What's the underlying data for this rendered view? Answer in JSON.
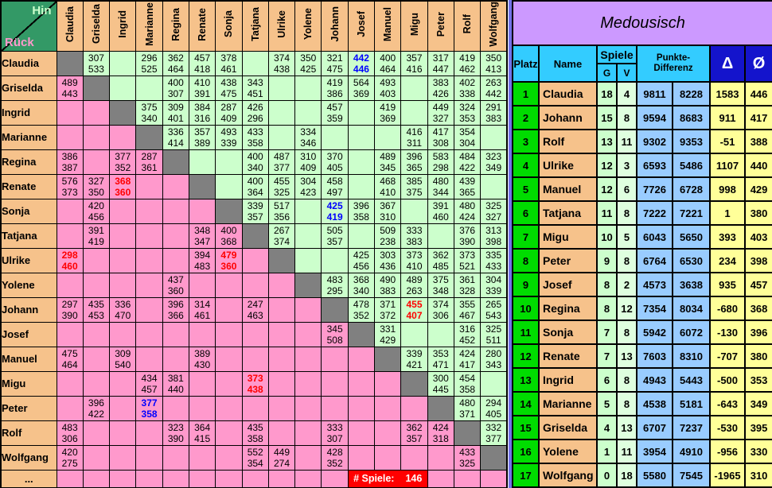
{
  "matrix": {
    "corner": {
      "hin": "Hin",
      "rueck": "Rück"
    },
    "players": [
      "Claudia",
      "Griselda",
      "Ingrid",
      "Marianne",
      "Regina",
      "Renate",
      "Sonja",
      "Tatjana",
      "Ulrike",
      "Yolene",
      "Johann",
      "Josef",
      "Manuel",
      "Migu",
      "Peter",
      "Rolf",
      "Wolfgang"
    ],
    "rows": [
      {
        "name": "Claudia",
        "cells": [
          null,
          [
            "307",
            "533"
          ],
          null,
          [
            "296",
            "525"
          ],
          [
            "362",
            "464"
          ],
          [
            "457",
            "418"
          ],
          [
            "378",
            "461"
          ],
          null,
          [
            "374",
            "438"
          ],
          [
            "350",
            "425"
          ],
          [
            "321",
            "475"
          ],
          [
            "442",
            "446",
            "blue"
          ],
          [
            "400",
            "464"
          ],
          [
            "357",
            "416"
          ],
          [
            "317",
            "447"
          ],
          [
            "419",
            "462"
          ],
          [
            "350",
            "413"
          ]
        ]
      },
      {
        "name": "Griselda",
        "cells": [
          [
            "489",
            "443"
          ],
          null,
          null,
          null,
          [
            "400",
            "307"
          ],
          [
            "410",
            "391"
          ],
          [
            "438",
            "475"
          ],
          [
            "343",
            "451"
          ],
          null,
          null,
          [
            "419",
            "386"
          ],
          [
            "564",
            "369"
          ],
          [
            "493",
            "403"
          ],
          null,
          [
            "383",
            "426"
          ],
          [
            "402",
            "338"
          ],
          [
            "263",
            "442"
          ]
        ]
      },
      {
        "name": "Ingrid",
        "cells": [
          null,
          null,
          null,
          [
            "375",
            "340"
          ],
          [
            "309",
            "401"
          ],
          [
            "384",
            "316"
          ],
          [
            "287",
            "409"
          ],
          [
            "426",
            "296"
          ],
          null,
          null,
          [
            "457",
            "359"
          ],
          null,
          [
            "419",
            "369"
          ],
          null,
          [
            "449",
            "327"
          ],
          [
            "324",
            "353"
          ],
          [
            "291",
            "383"
          ]
        ]
      },
      {
        "name": "Marianne",
        "cells": [
          null,
          null,
          null,
          null,
          [
            "336",
            "414"
          ],
          [
            "357",
            "389"
          ],
          [
            "493",
            "339"
          ],
          [
            "433",
            "358"
          ],
          null,
          [
            "334",
            "346"
          ],
          null,
          null,
          null,
          [
            "416",
            "311"
          ],
          [
            "417",
            "308"
          ],
          [
            "354",
            "304"
          ],
          null
        ]
      },
      {
        "name": "Regina",
        "cells": [
          [
            "386",
            "387"
          ],
          null,
          [
            "377",
            "352"
          ],
          [
            "287",
            "361"
          ],
          null,
          null,
          null,
          [
            "400",
            "340"
          ],
          [
            "487",
            "377"
          ],
          [
            "310",
            "409"
          ],
          [
            "370",
            "405"
          ],
          null,
          [
            "489",
            "345"
          ],
          [
            "396",
            "365"
          ],
          [
            "583",
            "298"
          ],
          [
            "484",
            "422"
          ],
          [
            "323",
            "349"
          ]
        ]
      },
      {
        "name": "Renate",
        "cells": [
          [
            "576",
            "373"
          ],
          [
            "327",
            "350"
          ],
          [
            "368",
            "360",
            "red"
          ],
          null,
          null,
          null,
          null,
          [
            "400",
            "364"
          ],
          [
            "455",
            "325"
          ],
          [
            "304",
            "423"
          ],
          [
            "458",
            "497"
          ],
          null,
          [
            "468",
            "410"
          ],
          [
            "385",
            "375"
          ],
          [
            "480",
            "344"
          ],
          [
            "439",
            "365"
          ],
          null
        ]
      },
      {
        "name": "Sonja",
        "cells": [
          null,
          [
            "420",
            "456"
          ],
          null,
          null,
          null,
          null,
          null,
          [
            "339",
            "357"
          ],
          [
            "517",
            "356"
          ],
          null,
          [
            "425",
            "419",
            "blue"
          ],
          [
            "396",
            "358"
          ],
          [
            "367",
            "310"
          ],
          null,
          [
            "391",
            "460"
          ],
          [
            "480",
            "424"
          ],
          [
            "325",
            "327"
          ]
        ]
      },
      {
        "name": "Tatjana",
        "cells": [
          null,
          [
            "391",
            "419"
          ],
          null,
          null,
          null,
          [
            "348",
            "347"
          ],
          [
            "400",
            "368"
          ],
          null,
          [
            "267",
            "374"
          ],
          null,
          [
            "505",
            "357"
          ],
          null,
          [
            "509",
            "238"
          ],
          [
            "333",
            "383"
          ],
          null,
          [
            "376",
            "390"
          ],
          [
            "313",
            "398"
          ]
        ]
      },
      {
        "name": "Ulrike",
        "cells": [
          [
            "298",
            "460",
            "red"
          ],
          null,
          null,
          null,
          null,
          [
            "394",
            "483"
          ],
          [
            "479",
            "360",
            "red"
          ],
          null,
          null,
          null,
          null,
          [
            "425",
            "456"
          ],
          [
            "303",
            "436"
          ],
          [
            "373",
            "410"
          ],
          [
            "362",
            "485"
          ],
          [
            "373",
            "521"
          ],
          [
            "335",
            "433"
          ]
        ]
      },
      {
        "name": "Yolene",
        "cells": [
          null,
          null,
          null,
          null,
          [
            "437",
            "360"
          ],
          null,
          null,
          null,
          null,
          null,
          [
            "483",
            "295"
          ],
          [
            "368",
            "340"
          ],
          [
            "490",
            "383"
          ],
          [
            "489",
            "263"
          ],
          [
            "375",
            "348"
          ],
          [
            "361",
            "328"
          ],
          [
            "304",
            "339"
          ]
        ]
      },
      {
        "name": "Johann",
        "cells": [
          [
            "297",
            "390"
          ],
          [
            "435",
            "453"
          ],
          [
            "336",
            "470"
          ],
          null,
          [
            "396",
            "366"
          ],
          [
            "314",
            "461"
          ],
          null,
          [
            "247",
            "463"
          ],
          null,
          null,
          null,
          [
            "478",
            "352"
          ],
          [
            "371",
            "372"
          ],
          [
            "455",
            "407",
            "red"
          ],
          [
            "374",
            "306"
          ],
          [
            "355",
            "467"
          ],
          [
            "265",
            "543"
          ]
        ]
      },
      {
        "name": "Josef",
        "cells": [
          null,
          null,
          null,
          null,
          null,
          null,
          null,
          null,
          null,
          null,
          [
            "345",
            "508"
          ],
          null,
          [
            "331",
            "429"
          ],
          null,
          null,
          [
            "316",
            "452"
          ],
          [
            "325",
            "511"
          ]
        ]
      },
      {
        "name": "Manuel",
        "cells": [
          [
            "475",
            "464"
          ],
          null,
          [
            "309",
            "540"
          ],
          null,
          null,
          [
            "389",
            "430"
          ],
          null,
          null,
          null,
          null,
          null,
          null,
          null,
          [
            "339",
            "421"
          ],
          [
            "353",
            "471"
          ],
          [
            "424",
            "417"
          ],
          [
            "280",
            "343"
          ]
        ]
      },
      {
        "name": "Migu",
        "cells": [
          null,
          null,
          null,
          [
            "434",
            "457"
          ],
          [
            "381",
            "440"
          ],
          null,
          null,
          [
            "373",
            "438",
            "red"
          ],
          null,
          null,
          null,
          null,
          null,
          null,
          [
            "300",
            "445"
          ],
          [
            "454",
            "358"
          ],
          null
        ]
      },
      {
        "name": "Peter",
        "cells": [
          null,
          [
            "396",
            "422"
          ],
          null,
          [
            "377",
            "358",
            "blue"
          ],
          null,
          null,
          null,
          null,
          null,
          null,
          null,
          null,
          null,
          null,
          null,
          [
            "480",
            "371"
          ],
          [
            "294",
            "405"
          ]
        ]
      },
      {
        "name": "Rolf",
        "cells": [
          [
            "483",
            "306"
          ],
          null,
          null,
          null,
          [
            "323",
            "390"
          ],
          [
            "364",
            "415"
          ],
          null,
          [
            "435",
            "358"
          ],
          null,
          null,
          [
            "333",
            "307"
          ],
          null,
          null,
          [
            "362",
            "357"
          ],
          [
            "424",
            "318"
          ],
          null,
          [
            "332",
            "377"
          ]
        ]
      },
      {
        "name": "Wolfgang",
        "cells": [
          [
            "420",
            "275"
          ],
          null,
          null,
          null,
          null,
          null,
          null,
          [
            "552",
            "354"
          ],
          [
            "449",
            "274"
          ],
          null,
          [
            "428",
            "352"
          ],
          null,
          null,
          null,
          null,
          [
            "433",
            "325"
          ],
          null
        ]
      }
    ],
    "rest_row_label": "...",
    "badge": {
      "label": "# Spiele:",
      "value": "146"
    }
  },
  "ranking": {
    "title": "Medousisch",
    "headers": {
      "platz": "Platz",
      "name": "Name",
      "spiele": "Spiele",
      "g": "G",
      "v": "V",
      "punkte": "Punkte-",
      "differenz": "Differenz",
      "delta": "Δ",
      "avg": "Ø"
    },
    "rows": [
      [
        "1",
        "Claudia",
        "18",
        "4",
        "9811",
        "8228",
        "1583",
        "446"
      ],
      [
        "2",
        "Johann",
        "15",
        "8",
        "9594",
        "8683",
        "911",
        "417"
      ],
      [
        "3",
        "Rolf",
        "13",
        "11",
        "9302",
        "9353",
        "-51",
        "388"
      ],
      [
        "4",
        "Ulrike",
        "12",
        "3",
        "6593",
        "5486",
        "1107",
        "440"
      ],
      [
        "5",
        "Manuel",
        "12",
        "6",
        "7726",
        "6728",
        "998",
        "429"
      ],
      [
        "6",
        "Tatjana",
        "11",
        "8",
        "7222",
        "7221",
        "1",
        "380"
      ],
      [
        "7",
        "Migu",
        "10",
        "5",
        "6043",
        "5650",
        "393",
        "403"
      ],
      [
        "8",
        "Peter",
        "9",
        "8",
        "6764",
        "6530",
        "234",
        "398"
      ],
      [
        "9",
        "Josef",
        "8",
        "2",
        "4573",
        "3638",
        "935",
        "457"
      ],
      [
        "10",
        "Regina",
        "8",
        "12",
        "7354",
        "8034",
        "-680",
        "368"
      ],
      [
        "11",
        "Sonja",
        "7",
        "8",
        "5942",
        "6072",
        "-130",
        "396"
      ],
      [
        "12",
        "Renate",
        "7",
        "13",
        "7603",
        "8310",
        "-707",
        "380"
      ],
      [
        "13",
        "Ingrid",
        "6",
        "8",
        "4943",
        "5443",
        "-500",
        "353"
      ],
      [
        "14",
        "Marianne",
        "5",
        "8",
        "4538",
        "5181",
        "-643",
        "349"
      ],
      [
        "15",
        "Griselda",
        "4",
        "13",
        "6707",
        "7237",
        "-530",
        "395"
      ],
      [
        "16",
        "Yolene",
        "1",
        "11",
        "3954",
        "4910",
        "-956",
        "330"
      ],
      [
        "17",
        "Wolfgang",
        "0",
        "18",
        "5580",
        "7545",
        "-1965",
        "310"
      ]
    ]
  },
  "colors": {
    "header_bg": "#F6C28B",
    "hin_triangle": "#CCFFCC",
    "rueck_triangle": "#FF99CC",
    "diagonal": "#808080",
    "corner_bg": "#339966",
    "highlight_red": "#FF0000",
    "highlight_blue": "#0000FF",
    "title_bg": "#CC99FF",
    "table_header_bg": "#33CCFF",
    "delta_header_bg": "#1414CC",
    "platz_bg": "#00DC00",
    "punkte_bg": "#99CCFF",
    "value_bg": "#FFFF99",
    "badge_bg": "#FF0000",
    "separator": "#7373E8"
  }
}
